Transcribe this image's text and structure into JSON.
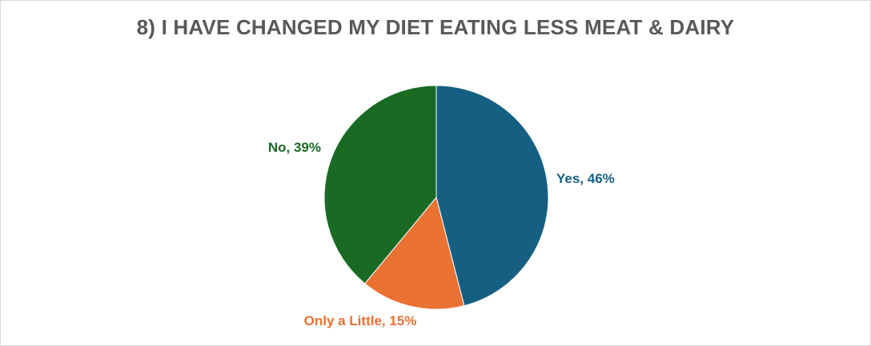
{
  "chart_data": {
    "type": "pie",
    "title": "8) I HAVE CHANGED MY DIET EATING LESS MEAT & DAIRY",
    "slices": [
      {
        "label": "Yes",
        "value": 46,
        "display": "Yes, 46%",
        "color": "#156082"
      },
      {
        "label": "Only a Little",
        "value": 15,
        "display": "Only a Little, 15%",
        "color": "#E97132"
      },
      {
        "label": "No",
        "value": 39,
        "display": "No, 39%",
        "color": "#196B24"
      }
    ],
    "legend": "none",
    "start_angle_deg": 0,
    "direction": "clockwise"
  }
}
